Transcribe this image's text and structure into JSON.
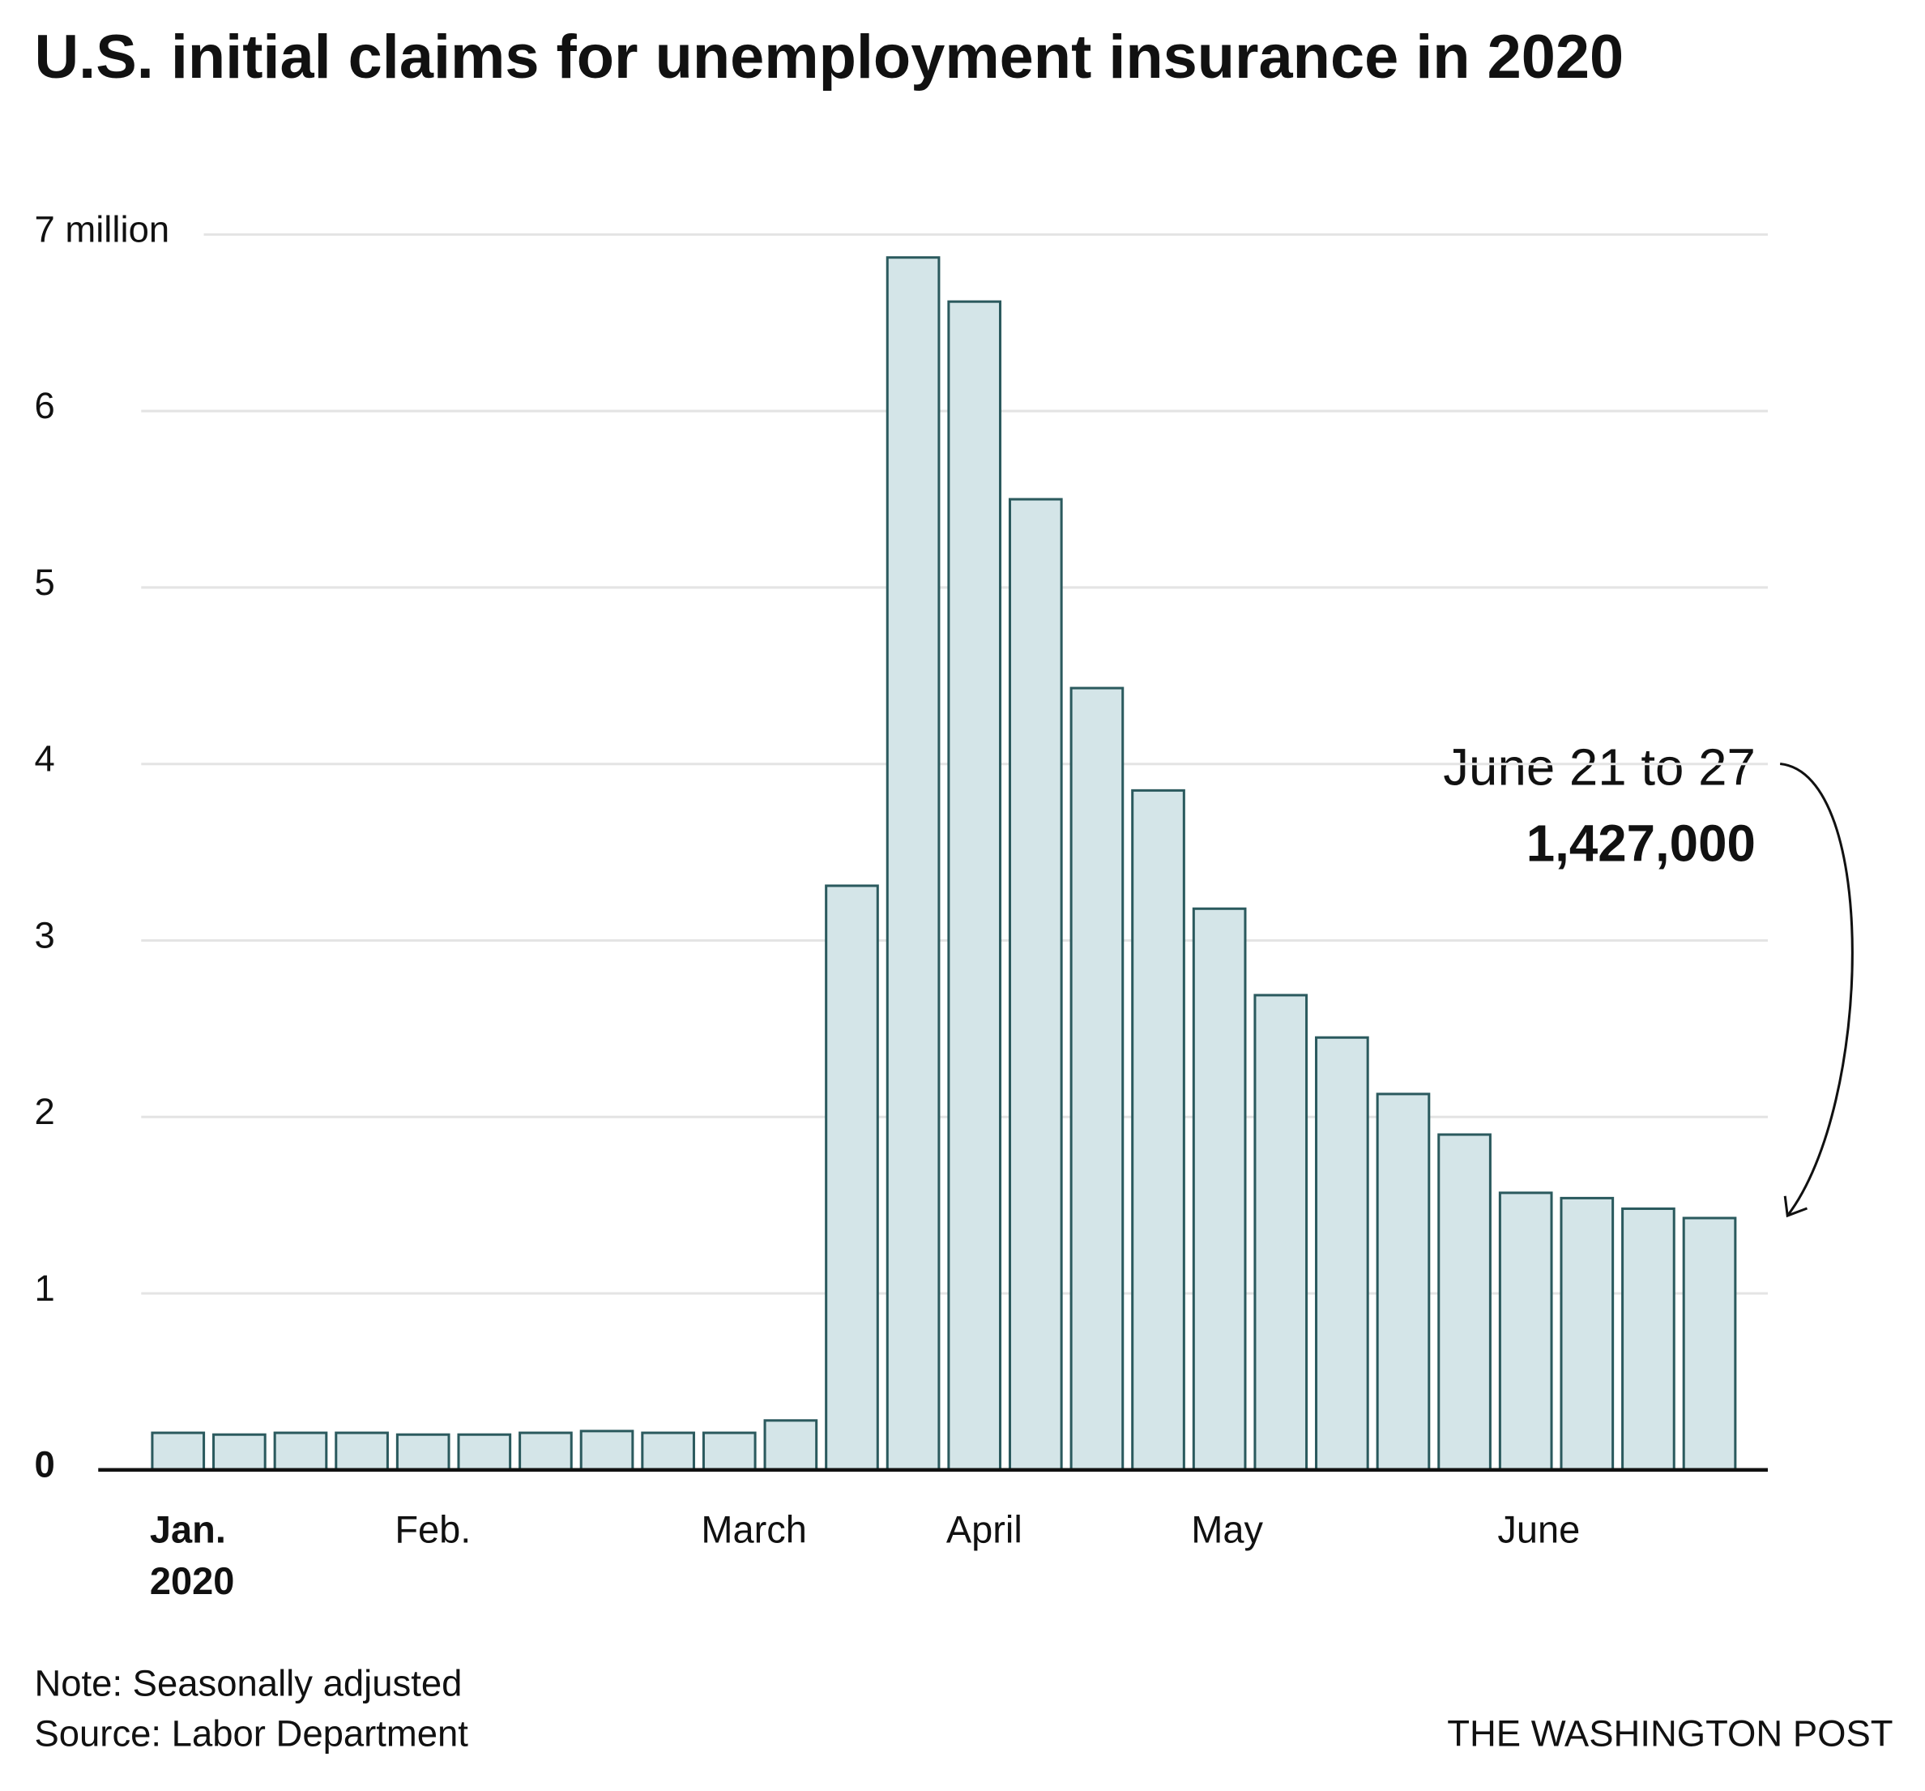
{
  "chart_data": {
    "type": "bar",
    "title": "U.S. initial claims for unemployment insurance in 2020",
    "categories": [
      "Jan.",
      null,
      null,
      null,
      "Feb.",
      null,
      null,
      null,
      null,
      "March",
      null,
      null,
      null,
      "April",
      null,
      null,
      null,
      "May",
      null,
      null,
      null,
      null,
      "June",
      null,
      null,
      null
    ],
    "year_label": "2020",
    "values": [
      0.21,
      0.2,
      0.21,
      0.21,
      0.2,
      0.2,
      0.21,
      0.22,
      0.21,
      0.21,
      0.28,
      3.31,
      6.87,
      6.62,
      5.5,
      4.43,
      3.85,
      3.18,
      2.69,
      2.45,
      2.13,
      1.9,
      1.57,
      1.54,
      1.48,
      1.427
    ],
    "color": "#d4e5e8",
    "stroke": "#2b5a5e",
    "ylim": [
      0,
      7
    ],
    "yticks": [
      0,
      1,
      2,
      3,
      4,
      5,
      6,
      {
        "value": 7,
        "label": "7 million"
      }
    ],
    "grid": true,
    "annotation": {
      "label": "June 21 to 27",
      "value_text": "1,427,000"
    },
    "note": "Note: Seasonally adjusted",
    "source": "Source: Labor Department",
    "credit": "THE WASHINGTON POST"
  }
}
